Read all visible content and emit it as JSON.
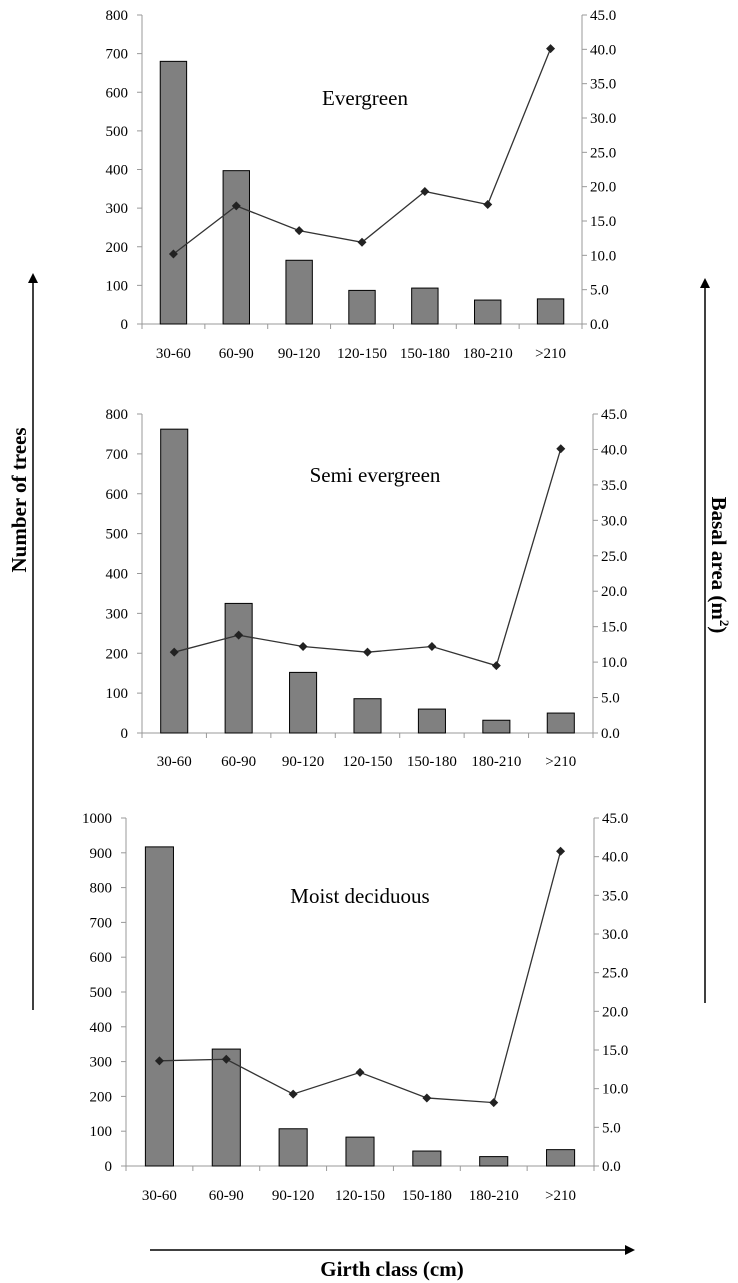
{
  "figure": {
    "left_axis_label": "Number of trees",
    "right_axis_label": "Basal area (m",
    "right_axis_label_sup": "2",
    "right_axis_label_end": ")",
    "x_axis_label": "Girth class (cm)"
  },
  "chart_data": [
    {
      "type": "bar",
      "title": "Evergreen",
      "categories": [
        "30-60",
        "60-90",
        "90-120",
        "120-150",
        "150-180",
        "180-210",
        ">210"
      ],
      "series": [
        {
          "name": "",
          "type": "bar",
          "axis": "left",
          "values": [
            680,
            397,
            165,
            87,
            93,
            62,
            65
          ]
        },
        {
          "name": "",
          "type": "line",
          "axis": "right",
          "values": [
            10.2,
            17.2,
            13.6,
            11.9,
            19.3,
            17.4,
            40.1
          ]
        }
      ],
      "ylim_left": [
        0,
        800
      ],
      "yticks_left": [
        "0",
        "100",
        "200",
        "300",
        "400",
        "500",
        "600",
        "700",
        "800"
      ],
      "ylim_right": [
        0,
        45
      ],
      "yticks_right": [
        "0.0",
        "5.0",
        "10.0",
        "15.0",
        "20.0",
        "25.0",
        "30.0",
        "35.0",
        "40.0",
        "45.0"
      ],
      "bar_color": "#808080",
      "line_color": "#333333"
    },
    {
      "type": "bar",
      "title": "Semi evergreen",
      "categories": [
        "30-60",
        "60-90",
        "90-120",
        "120-150",
        "150-180",
        "180-210",
        ">210"
      ],
      "series": [
        {
          "name": "",
          "type": "bar",
          "axis": "left",
          "values": [
            762,
            325,
            152,
            86,
            60,
            32,
            50
          ]
        },
        {
          "name": "",
          "type": "line",
          "axis": "right",
          "values": [
            11.4,
            13.8,
            12.2,
            11.4,
            12.2,
            9.5,
            40.1
          ]
        }
      ],
      "ylim_left": [
        0,
        800
      ],
      "yticks_left": [
        "0",
        "100",
        "200",
        "300",
        "400",
        "500",
        "600",
        "700",
        "800"
      ],
      "ylim_right": [
        0,
        45
      ],
      "yticks_right": [
        "0.0",
        "5.0",
        "10.0",
        "15.0",
        "20.0",
        "25.0",
        "30.0",
        "35.0",
        "40.0",
        "45.0"
      ],
      "bar_color": "#808080",
      "line_color": "#333333"
    },
    {
      "type": "bar",
      "title": "Moist deciduous",
      "categories": [
        "30-60",
        "60-90",
        "90-120",
        "120-150",
        "150-180",
        "180-210",
        ">210"
      ],
      "series": [
        {
          "name": "",
          "type": "bar",
          "axis": "left",
          "values": [
            917,
            336,
            107,
            83,
            43,
            27,
            47
          ]
        },
        {
          "name": "",
          "type": "line",
          "axis": "right",
          "values": [
            13.6,
            13.8,
            9.3,
            12.1,
            8.8,
            8.2,
            40.7
          ]
        }
      ],
      "ylim_left": [
        0,
        1000
      ],
      "yticks_left": [
        "0",
        "100",
        "200",
        "300",
        "400",
        "500",
        "600",
        "700",
        "800",
        "900",
        "1000"
      ],
      "ylim_right": [
        0,
        45
      ],
      "yticks_right": [
        "0.0",
        "5.0",
        "10.0",
        "15.0",
        "20.0",
        "25.0",
        "30.0",
        "35.0",
        "40.0",
        "45.0"
      ],
      "bar_color": "#808080",
      "line_color": "#333333"
    }
  ]
}
